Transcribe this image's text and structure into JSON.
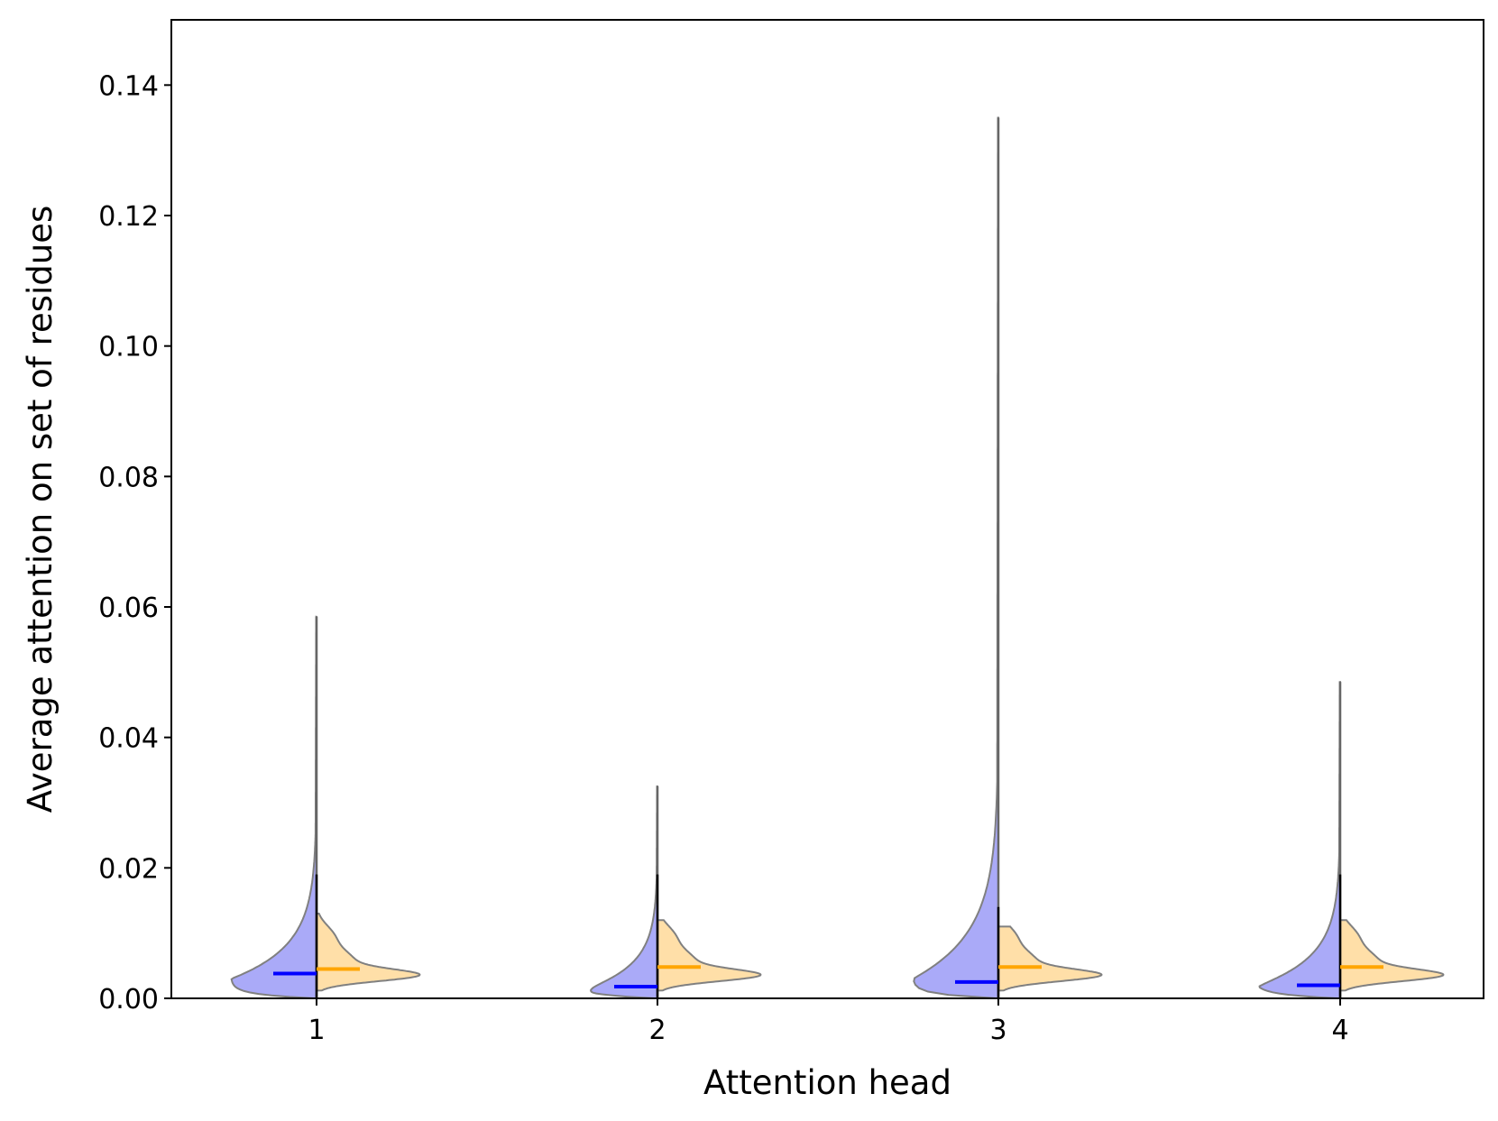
{
  "chart_data": {
    "type": "violin",
    "title": "",
    "xlabel": "Attention head",
    "ylabel": "Average attention on set of residues",
    "ylim": [
      0,
      0.15
    ],
    "yticks": [
      "0.00",
      "0.02",
      "0.04",
      "0.06",
      "0.08",
      "0.10",
      "0.12",
      "0.14"
    ],
    "categories": [
      "1",
      "2",
      "3",
      "4"
    ],
    "grid": false,
    "legend": "none",
    "colors": {
      "left": "#aaaaf8",
      "right": "#ffdfa8",
      "left_mean": "#0000ff",
      "right_mean": "#ffa500",
      "outline": "#808080"
    },
    "series": [
      {
        "side": "left",
        "color": "#0000ff",
        "means": [
          0.0038,
          0.0018,
          0.0025,
          0.002
        ],
        "max": [
          0.0585,
          0.0325,
          0.135,
          0.0485
        ],
        "bar_top": [
          0.019,
          0.019,
          0.014,
          0.019
        ],
        "mode": [
          0.003,
          0.0008,
          0.003,
          0.0018
        ]
      },
      {
        "side": "right",
        "color": "#ffa500",
        "means": [
          0.0045,
          0.0048,
          0.0048,
          0.0048
        ],
        "max": [
          0.013,
          0.012,
          0.011,
          0.012
        ],
        "bar_top": [
          0.019,
          0.019,
          0.014,
          0.019
        ],
        "mode": [
          0.0035,
          0.0035,
          0.0035,
          0.0035
        ]
      }
    ]
  }
}
